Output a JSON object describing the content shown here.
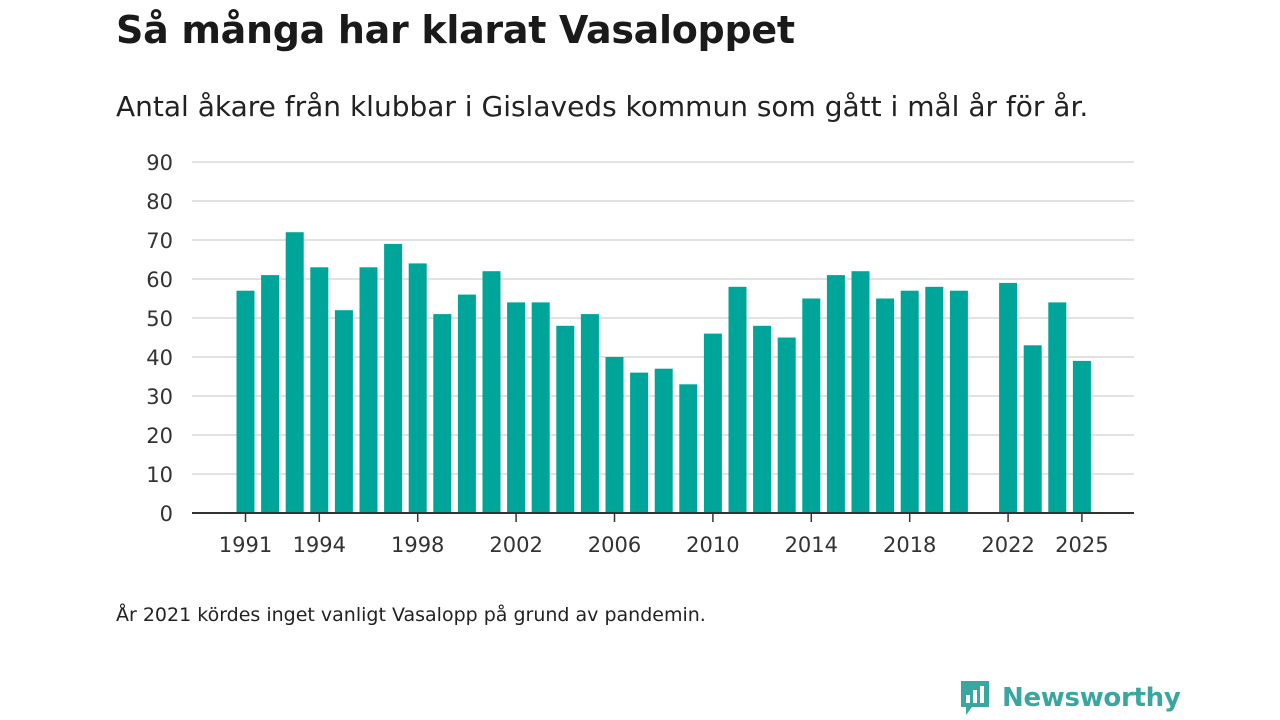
{
  "header": {
    "title": "Så många har klarat Vasaloppet",
    "subtitle": "Antal åkare från klubbar i Gislaveds kommun som gått i mål år för år."
  },
  "footnote": "År 2021 kördes inget vanligt Vasalopp på grund av pandemin.",
  "brand": {
    "name": "Newsworthy",
    "icon": "newsworthy-logo-icon",
    "color": "#3aa6a0"
  },
  "colors": {
    "bar": "#00a59a",
    "grid": "#d9d9d9",
    "axis": "#333333"
  },
  "chart_data": {
    "type": "bar",
    "title": "Så många har klarat Vasaloppet",
    "xlabel": "",
    "ylabel": "",
    "ylim": [
      0,
      90
    ],
    "yticks": [
      0,
      10,
      20,
      30,
      40,
      50,
      60,
      70,
      80,
      90
    ],
    "xtick_labels": [
      "1991",
      "1994",
      "1998",
      "2002",
      "2006",
      "2010",
      "2014",
      "2018",
      "2022",
      "2025"
    ],
    "grid": true,
    "categories": [
      1991,
      1992,
      1993,
      1994,
      1995,
      1996,
      1997,
      1998,
      1999,
      2000,
      2001,
      2002,
      2003,
      2004,
      2005,
      2006,
      2007,
      2008,
      2009,
      2010,
      2011,
      2012,
      2013,
      2014,
      2015,
      2016,
      2017,
      2018,
      2019,
      2020,
      2021,
      2022,
      2023,
      2024,
      2025
    ],
    "values": [
      57,
      61,
      72,
      63,
      52,
      63,
      69,
      64,
      51,
      56,
      62,
      54,
      54,
      48,
      51,
      40,
      36,
      37,
      33,
      46,
      58,
      48,
      45,
      55,
      61,
      62,
      55,
      57,
      58,
      57,
      null,
      59,
      43,
      54,
      39
    ]
  }
}
